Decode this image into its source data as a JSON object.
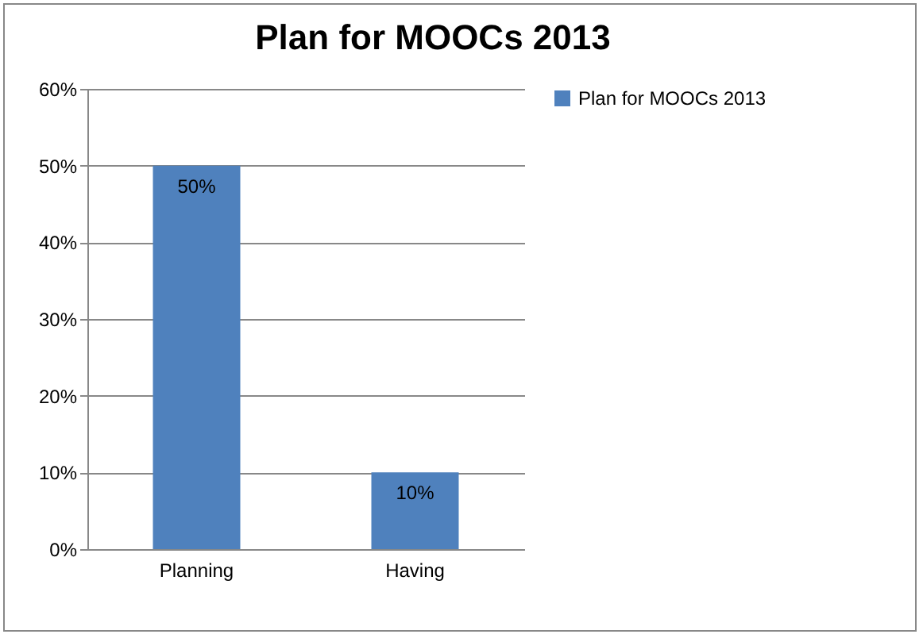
{
  "chart_data": {
    "type": "bar",
    "title": "Plan for MOOCs 2013",
    "categories": [
      "Planning",
      "Having"
    ],
    "series": [
      {
        "name": "Plan for MOOCs 2013",
        "color": "#4f81bd",
        "values": [
          50,
          10
        ],
        "value_labels": [
          "50%",
          "10%"
        ]
      }
    ],
    "ylim": [
      0,
      60
    ],
    "yticks": [
      {
        "value": 0,
        "label": "0%"
      },
      {
        "value": 10,
        "label": "10%"
      },
      {
        "value": 20,
        "label": "20%"
      },
      {
        "value": 30,
        "label": "30%"
      },
      {
        "value": 40,
        "label": "40%"
      },
      {
        "value": 50,
        "label": "50%"
      },
      {
        "value": 60,
        "label": "60%"
      }
    ],
    "grid": "y",
    "legend": "right"
  }
}
